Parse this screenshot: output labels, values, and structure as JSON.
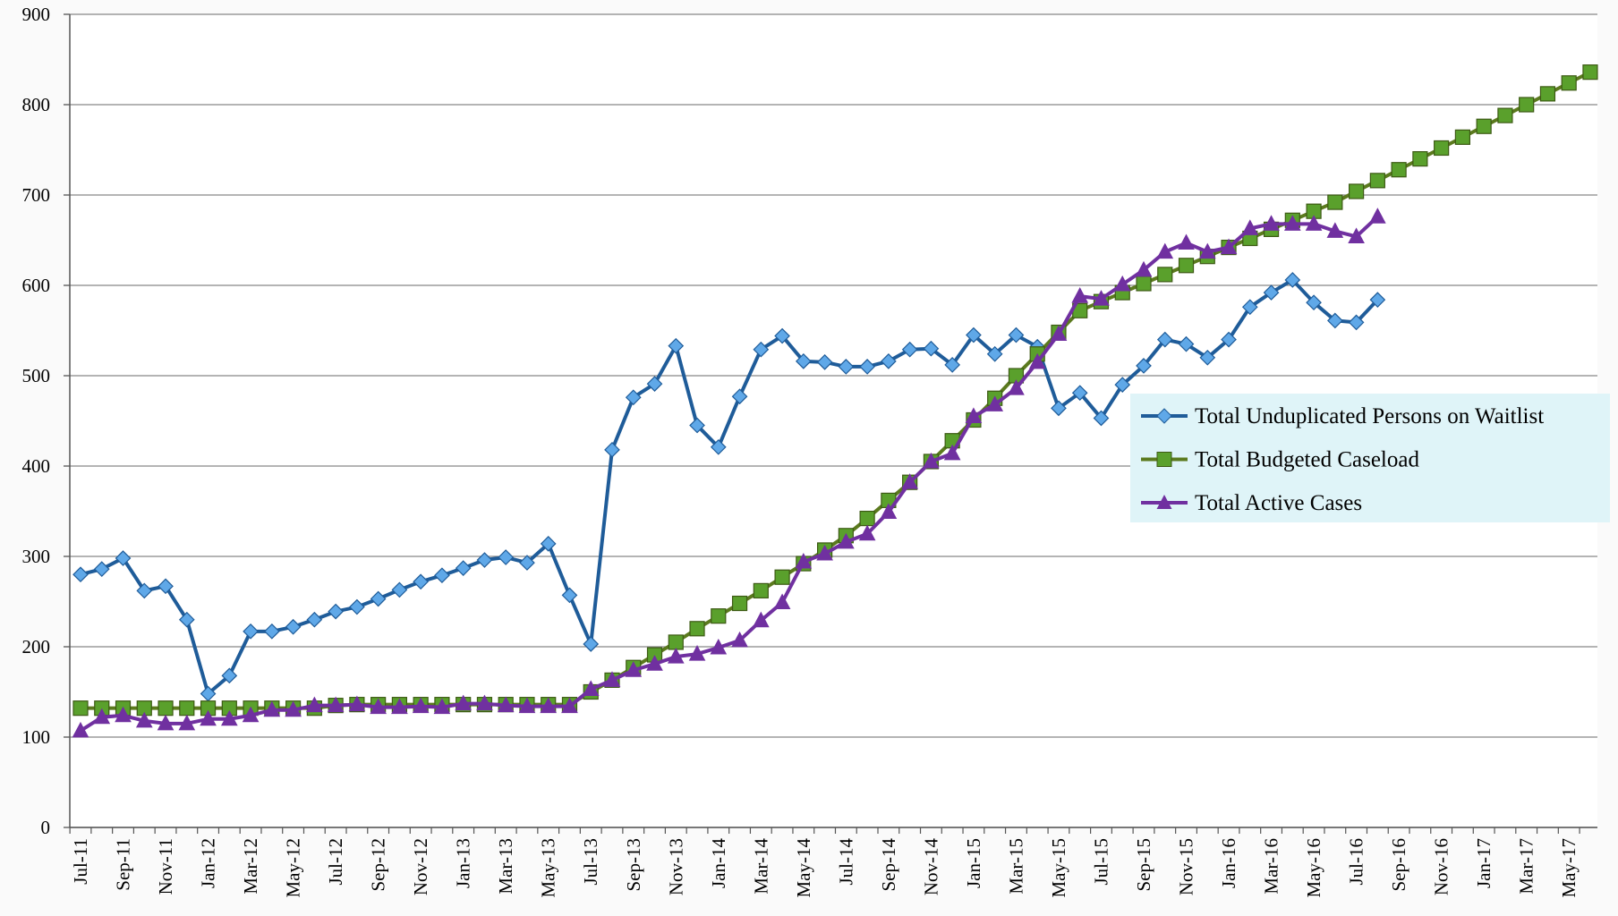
{
  "chart_data": {
    "type": "line",
    "categories": [
      "Jul-11",
      null,
      "Sep-11",
      null,
      "Nov-11",
      null,
      "Jan-12",
      null,
      "Mar-12",
      null,
      "May-12",
      null,
      "Jul-12",
      null,
      "Sep-12",
      null,
      "Nov-12",
      null,
      "Jan-13",
      null,
      "Mar-13",
      null,
      "May-13",
      null,
      "Jul-13",
      null,
      "Sep-13",
      null,
      "Nov-13",
      null,
      "Jan-14",
      null,
      "Mar-14",
      null,
      "May-14",
      null,
      "Jul-14",
      null,
      "Sep-14",
      null,
      "Nov-14",
      null,
      "Jan-15",
      null,
      "Mar-15",
      null,
      "May-15",
      null,
      "Jul-15",
      null,
      "Sep-15",
      null,
      "Nov-15",
      null,
      "Jan-16",
      null,
      "Mar-16",
      null,
      "May-16",
      null,
      "Jul-16",
      null,
      "Sep-16",
      null,
      "Nov-16",
      null,
      "Jan-17",
      null,
      "Mar-17",
      null,
      "May-17",
      null
    ],
    "series": [
      {
        "name": "Total Unduplicated Persons on Waitlist",
        "color": "#1f5c99",
        "marker": "diamond",
        "marker_color": "#5fa8e8",
        "values": [
          280,
          286,
          298,
          262,
          267,
          230,
          148,
          168,
          217,
          217,
          222,
          230,
          239,
          244,
          253,
          263,
          272,
          279,
          287,
          296,
          299,
          293,
          314,
          257,
          203,
          418,
          476,
          491,
          533,
          445,
          421,
          477,
          529,
          544,
          516,
          515,
          510,
          510,
          516,
          529,
          530,
          512,
          545,
          524,
          545,
          532,
          464,
          481,
          453,
          490,
          511,
          540,
          535,
          520,
          540,
          576,
          592,
          606,
          581,
          561,
          559,
          584,
          null,
          null,
          null,
          null,
          null,
          null,
          null,
          null,
          null,
          null
        ]
      },
      {
        "name": "Total Budgeted Caseload",
        "color": "#5b7a1e",
        "marker": "square",
        "marker_color": "#5aa02c",
        "values": [
          132,
          132,
          132,
          132,
          132,
          132,
          132,
          132,
          132,
          132,
          132,
          132,
          135,
          136,
          136,
          136,
          136,
          136,
          136,
          136,
          136,
          136,
          136,
          136,
          150,
          163,
          177,
          191,
          205,
          220,
          234,
          248,
          262,
          277,
          292,
          307,
          323,
          342,
          362,
          382,
          405,
          428,
          451,
          475,
          500,
          524,
          548,
          572,
          582,
          592,
          602,
          612,
          622,
          632,
          642,
          652,
          662,
          672,
          682,
          692,
          704,
          716,
          728,
          740,
          752,
          764,
          776,
          788,
          800,
          812,
          824,
          836
        ]
      },
      {
        "name": "Total Active Cases",
        "color": "#7030a0",
        "marker": "triangle",
        "marker_color": "#7030a0",
        "values": [
          107,
          122,
          124,
          118,
          115,
          115,
          120,
          120,
          124,
          130,
          130,
          135,
          135,
          136,
          133,
          133,
          134,
          133,
          137,
          137,
          135,
          134,
          134,
          134,
          153,
          163,
          174,
          181,
          189,
          192,
          199,
          207,
          229,
          249,
          294,
          303,
          316,
          325,
          349,
          382,
          405,
          414,
          455,
          468,
          486,
          515,
          546,
          588,
          585,
          601,
          617,
          637,
          647,
          637,
          642,
          663,
          668,
          668,
          668,
          660,
          654,
          676,
          null,
          null,
          null,
          null,
          null,
          null,
          null,
          null,
          null,
          null
        ]
      }
    ],
    "ylim": [
      0,
      900
    ],
    "yticks": [
      0,
      100,
      200,
      300,
      400,
      500,
      600,
      700,
      800,
      900
    ],
    "grid": true,
    "legend": "right"
  }
}
